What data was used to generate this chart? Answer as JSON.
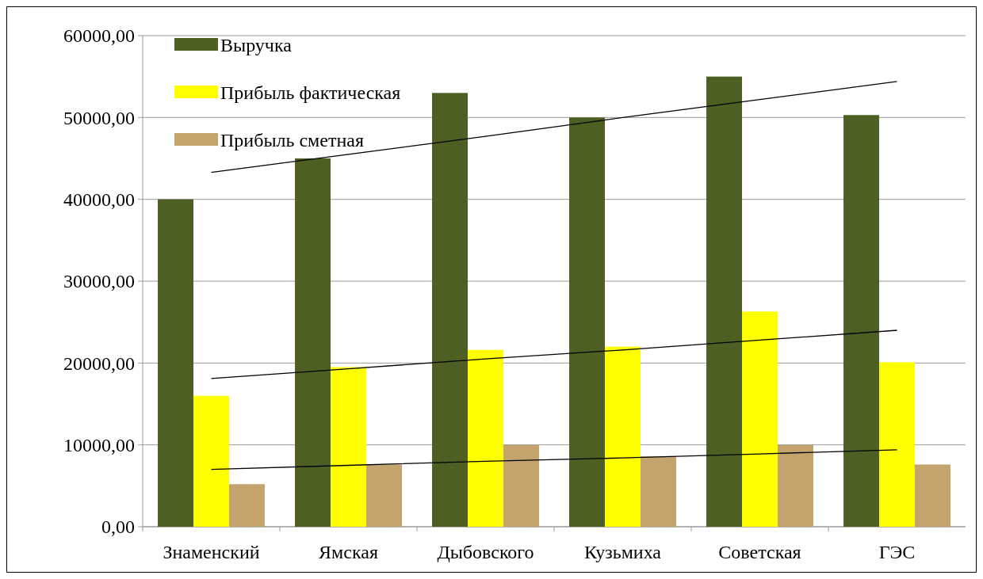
{
  "chart_data": {
    "type": "bar",
    "categories": [
      "Знаменский",
      "Ямская",
      "Дыбовского",
      "Кузьмиха",
      "Советская",
      "ГЭС"
    ],
    "series": [
      {
        "name": "Выручка",
        "color": "#4e5f24",
        "values": [
          40000,
          45000,
          53000,
          50000,
          55000,
          50300
        ]
      },
      {
        "name": "Прибыль фактическая",
        "color": "#ffff00",
        "values": [
          16000,
          19500,
          21600,
          22000,
          26300,
          20100
        ]
      },
      {
        "name": "Прибыль сметная",
        "color": "#c4a46c",
        "values": [
          5200,
          7600,
          10000,
          8600,
          10000,
          7600
        ]
      },
      {
        "type": "line",
        "color": "#000000",
        "values": [
          43300,
          45500,
          47700,
          50000,
          52200,
          54400
        ]
      },
      {
        "type": "line",
        "color": "#000000",
        "values": [
          18100,
          19300,
          20500,
          21600,
          22800,
          24000
        ]
      },
      {
        "type": "line",
        "color": "#000000",
        "values": [
          7000,
          7500,
          8000,
          8400,
          8900,
          9400
        ]
      }
    ],
    "ylim": [
      0,
      60000
    ],
    "yticks": [
      {
        "value": 0,
        "label": "0,00"
      },
      {
        "value": 10000,
        "label": "10000,00"
      },
      {
        "value": 20000,
        "label": "20000,00"
      },
      {
        "value": 30000,
        "label": "30000,00"
      },
      {
        "value": 40000,
        "label": "40000,00"
      },
      {
        "value": 50000,
        "label": "50000,00"
      },
      {
        "value": 60000,
        "label": "60000,00"
      }
    ],
    "grid": "y",
    "legend": "top left"
  }
}
